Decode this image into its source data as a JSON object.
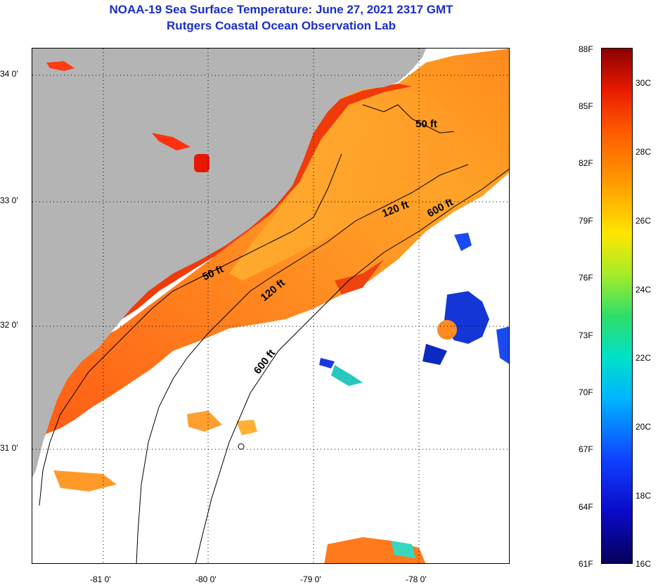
{
  "header": {
    "title": "NOAA-19 Sea Surface Temperature:  June 27, 2021 2317 GMT",
    "subtitle": "Rutgers Coastal Ocean Observation Lab"
  },
  "map": {
    "lat_labels": [
      "34 0'",
      "33 0'",
      "32 0'",
      "31 0'"
    ],
    "lon_labels": [
      "-81 0'",
      "-80 0'",
      "-79 0'",
      "-78 0'"
    ],
    "contours": [
      "50 ft",
      "50 ft",
      "120 ft",
      "120 ft",
      "600 ft",
      "600 ft"
    ]
  },
  "colorbar": {
    "fahrenheit": [
      "88F",
      "85F",
      "82F",
      "79F",
      "76F",
      "73F",
      "70F",
      "67F",
      "64F",
      "61F"
    ],
    "celsius": [
      "30C",
      "28C",
      "26C",
      "24C",
      "22C",
      "20C",
      "18C",
      "16C"
    ]
  },
  "colors": {
    "land": "#b4b4b4",
    "title": "#1a2ec8",
    "cloud": "#ffffff"
  }
}
